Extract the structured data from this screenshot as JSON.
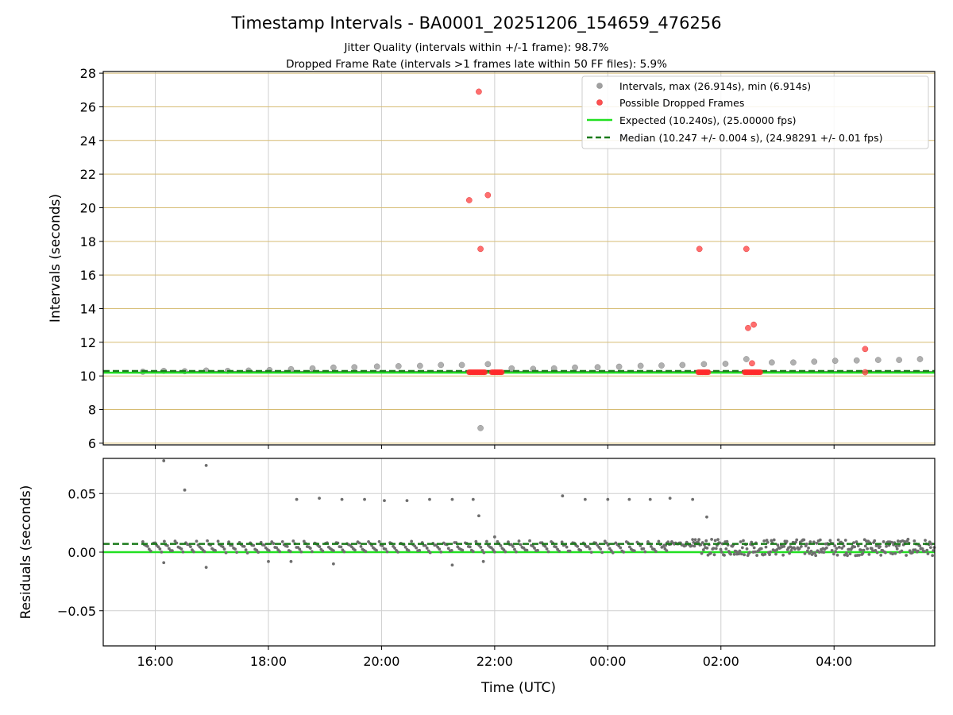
{
  "chart_data": {
    "title": "Timestamp Intervals - BA0001_20251206_154659_476256",
    "subtitles": [
      "Jitter Quality (intervals within +/-1 frame): 98.7%",
      "Dropped Frame Rate (intervals >1 frames late within 50 FF files): 5.9%"
    ],
    "xlabel": "Time (UTC)",
    "x_unit": "hours since 16:00 UTC",
    "xlim": [
      -0.92,
      13.78
    ],
    "xticks": [
      {
        "value": 0,
        "label": "16:00"
      },
      {
        "value": 2,
        "label": "18:00"
      },
      {
        "value": 4,
        "label": "20:00"
      },
      {
        "value": 6,
        "label": "22:00"
      },
      {
        "value": 8,
        "label": "00:00"
      },
      {
        "value": 10,
        "label": "02:00"
      },
      {
        "value": 12,
        "label": "04:00"
      }
    ],
    "intervals_plot": {
      "type": "scatter",
      "ylabel": "Intervals (seconds)",
      "ylim": [
        5.9,
        28.1
      ],
      "yticks": [
        6,
        8,
        10,
        12,
        14,
        16,
        18,
        20,
        22,
        24,
        26,
        28
      ],
      "yticks_labels": [
        "6",
        "8",
        "10",
        "12",
        "14",
        "16",
        "18",
        "20",
        "22",
        "24",
        "26",
        "28"
      ],
      "legend": [
        {
          "label": "Intervals, max (26.914s), min (6.914s)",
          "kind": "marker",
          "color": "#a0a0a0"
        },
        {
          "label": "Possible Dropped Frames",
          "kind": "marker",
          "color": "#ff4040"
        },
        {
          "label": "Expected (10.240s), (25.00000 fps)",
          "kind": "line",
          "color": "#22e022"
        },
        {
          "label": "Median (10.247 +/- 0.004 s), (24.98291 +/- 0.01 fps)",
          "kind": "dashed",
          "color": "#1a7a1a"
        }
      ],
      "expected": 10.24,
      "median": 10.247,
      "baseline_band": [
        10.18,
        10.28
      ],
      "baseline_start": -0.22,
      "interval_points": [
        [
          -0.22,
          10.25
        ],
        [
          0.15,
          10.3
        ],
        [
          0.52,
          10.28
        ],
        [
          0.9,
          10.32
        ],
        [
          1.28,
          10.3
        ],
        [
          1.65,
          10.32
        ],
        [
          2.02,
          10.35
        ],
        [
          2.4,
          10.4
        ],
        [
          2.78,
          10.45
        ],
        [
          3.15,
          10.5
        ],
        [
          3.52,
          10.52
        ],
        [
          3.92,
          10.56
        ],
        [
          4.3,
          10.58
        ],
        [
          4.68,
          10.6
        ],
        [
          5.05,
          10.65
        ],
        [
          5.42,
          10.65
        ],
        [
          5.75,
          6.9
        ],
        [
          5.88,
          10.7
        ],
        [
          6.3,
          10.45
        ],
        [
          6.68,
          10.42
        ],
        [
          7.05,
          10.45
        ],
        [
          7.42,
          10.5
        ],
        [
          7.82,
          10.52
        ],
        [
          8.2,
          10.55
        ],
        [
          8.58,
          10.6
        ],
        [
          8.95,
          10.62
        ],
        [
          9.32,
          10.65
        ],
        [
          9.7,
          10.7
        ],
        [
          10.08,
          10.72
        ],
        [
          10.45,
          11.0
        ],
        [
          10.9,
          10.8
        ],
        [
          11.28,
          10.8
        ],
        [
          11.65,
          10.85
        ],
        [
          12.02,
          10.9
        ],
        [
          12.4,
          10.92
        ],
        [
          12.78,
          10.95
        ],
        [
          13.15,
          10.95
        ],
        [
          13.52,
          11.0
        ]
      ],
      "dropped_points": [
        [
          5.72,
          26.9
        ],
        [
          5.55,
          20.45
        ],
        [
          5.88,
          20.75
        ],
        [
          5.75,
          17.55
        ],
        [
          9.62,
          17.55
        ],
        [
          10.45,
          17.55
        ],
        [
          10.58,
          13.05
        ],
        [
          10.48,
          12.85
        ],
        [
          10.55,
          10.75
        ],
        [
          12.55,
          11.6
        ],
        [
          12.55,
          10.22
        ]
      ],
      "dropped_clusters": [
        [
          5.55,
          5.85
        ],
        [
          5.95,
          6.15
        ],
        [
          9.6,
          9.78
        ],
        [
          10.42,
          10.72
        ]
      ]
    },
    "residuals_plot": {
      "type": "scatter",
      "ylabel": "Residuals (seconds)",
      "ylim": [
        -0.08,
        0.08
      ],
      "yticks": [
        -0.05,
        0,
        0.05
      ],
      "yticks_labels": [
        "−0.05",
        "0.00",
        "0.05"
      ],
      "expected": 0.0,
      "median": 0.007,
      "outliers": [
        [
          0.15,
          0.078
        ],
        [
          0.52,
          0.053
        ],
        [
          0.9,
          0.074
        ],
        [
          2.5,
          0.045
        ],
        [
          2.9,
          0.046
        ],
        [
          3.3,
          0.045
        ],
        [
          3.7,
          0.045
        ],
        [
          4.05,
          0.044
        ],
        [
          4.45,
          0.044
        ],
        [
          4.85,
          0.045
        ],
        [
          5.25,
          0.045
        ],
        [
          5.62,
          0.045
        ],
        [
          5.72,
          0.031
        ],
        [
          6.0,
          0.013
        ],
        [
          7.2,
          0.048
        ],
        [
          7.6,
          0.045
        ],
        [
          8.0,
          0.045
        ],
        [
          8.38,
          0.045
        ],
        [
          8.75,
          0.045
        ],
        [
          9.1,
          0.046
        ],
        [
          9.5,
          0.045
        ],
        [
          9.75,
          0.03
        ],
        [
          0.15,
          -0.009
        ],
        [
          0.9,
          -0.013
        ],
        [
          2.0,
          -0.008
        ],
        [
          2.4,
          -0.008
        ],
        [
          3.15,
          -0.01
        ],
        [
          5.25,
          -0.011
        ],
        [
          5.8,
          -0.008
        ]
      ]
    }
  }
}
